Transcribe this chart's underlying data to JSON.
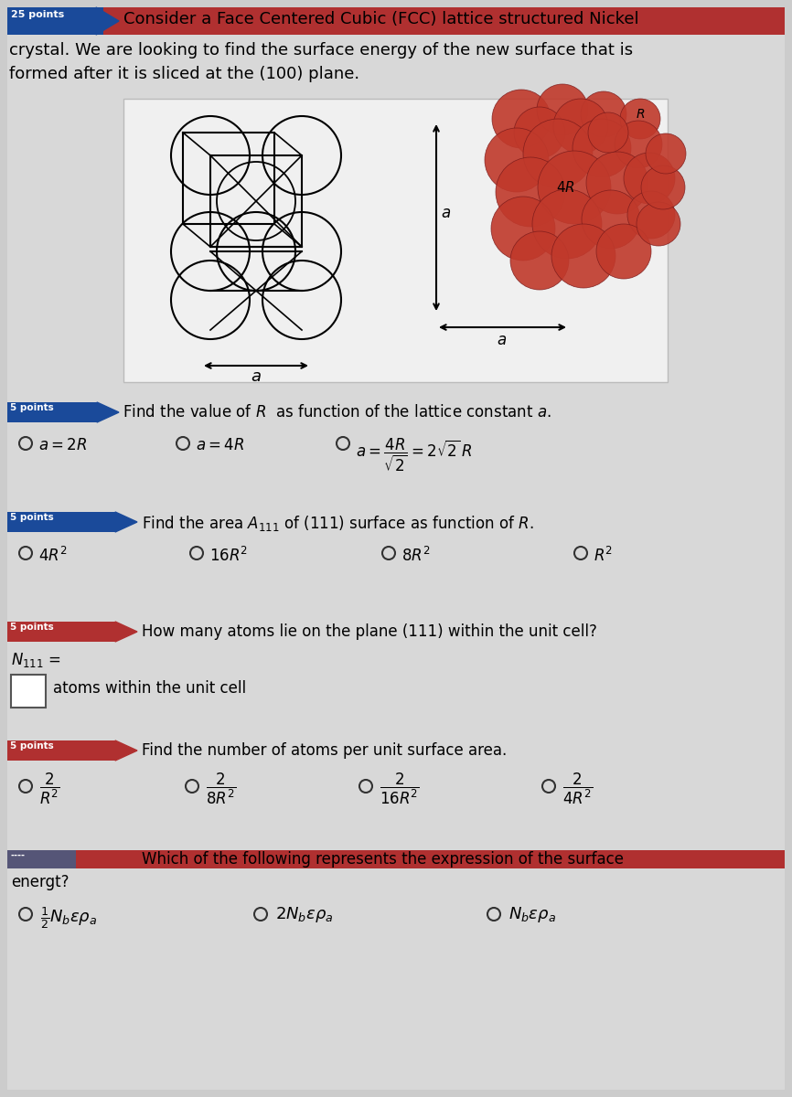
{
  "bg_color": "#cccccc",
  "content_bg": "#d4d4d4",
  "white_img_bg": "#f5f5f5",
  "title_line1": "Consider a Face Centered Cubic (FCC) lattice structured Nickel",
  "title_line2": "crystal. We are looking to find the surface energy of the new surface that is",
  "title_line3": "formed after it is sliced at the (100) plane.",
  "q1_text": "Find the value of $R$  as function of the lattice constant $a$.",
  "q1_opt1": "$a = 2R$",
  "q1_opt2": "$a = 4R$",
  "q1_opt3": "$a = \\dfrac{4R}{\\sqrt{2}} = 2\\sqrt{2}\\,R$",
  "q2_text": "Find the area $A_{111}$ of (111) surface as function of $R$.",
  "q2_opt1": "$4R^2$",
  "q2_opt2": "$16R^2$",
  "q2_opt3": "$8R^2$",
  "q2_opt4": "$R^2$",
  "q3_text": "How many atoms lie on the plane (111) within the unit cell?",
  "q3_sub1": "$N_{111}$ =",
  "q3_sub2": "atoms within the unit cell",
  "q4_text": "Find the number of atoms per unit surface area.",
  "q5_text1": "Which of the following represents the expression of the surface",
  "q5_text2": "energt?",
  "q5_opt1": "$\\frac{1}{2}N_b\\epsilon\\rho_a$",
  "q5_opt2": "$2N_b\\epsilon\\rho_a$",
  "q5_opt3": "$N_b\\epsilon\\rho_a$",
  "blue_color": "#1a4a9a",
  "red_color": "#b03030",
  "dark_red": "#8b1a1a",
  "text_color": "#111111",
  "radio_color": "#333333"
}
